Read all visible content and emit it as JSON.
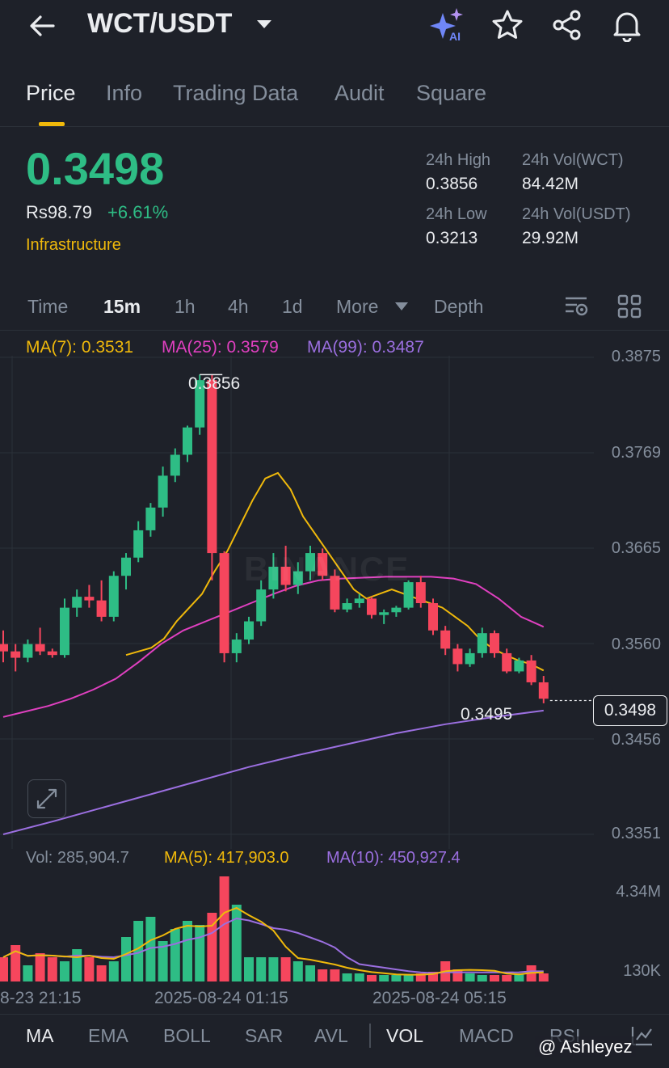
{
  "header": {
    "title": "WCT/USDT",
    "icons": [
      "back-arrow-icon",
      "chevron-down-icon",
      "ai-sparkle-icon",
      "star-icon",
      "share-icon",
      "bell-icon"
    ]
  },
  "tabs": [
    {
      "label": "Price"
    },
    {
      "label": "Info"
    },
    {
      "label": "Trading Data"
    },
    {
      "label": "Audit"
    },
    {
      "label": "Square"
    }
  ],
  "ticker": {
    "price": "0.3498",
    "fiat": "Rs98.79",
    "change": "+6.61%",
    "tag": "Infrastructure",
    "high_label": "24h High",
    "high": "0.3856",
    "low_label": "24h Low",
    "low": "0.3213",
    "vol_base_label": "24h Vol(WCT)",
    "vol_base": "84.42M",
    "vol_quote_label": "24h Vol(USDT)",
    "vol_quote": "29.92M"
  },
  "timeframes": {
    "items": [
      "Time",
      "15m",
      "1h",
      "4h",
      "1d",
      "More",
      "Depth"
    ],
    "selected": "15m"
  },
  "ma_legend": {
    "ma7": "MA(7): 0.3531",
    "ma25": "MA(25): 0.3579",
    "ma99": "MA(99): 0.3487"
  },
  "colors": {
    "up": "#2ebd85",
    "down": "#f6465d",
    "ma7": "#f0b90b",
    "ma25": "#e040c0",
    "ma99": "#9b6fe0",
    "bg": "#1e2129"
  },
  "chart_data": {
    "type": "candlestick",
    "price_axis": [
      "0.3875",
      "0.3769",
      "0.3665",
      "0.3560",
      "0.3456",
      "0.3351"
    ],
    "y_range": [
      0.3351,
      0.3875
    ],
    "high_marker": "0.3856",
    "low_marker": "0.3495",
    "last_price": "0.3498",
    "watermark": "BINANCE",
    "time_axis": [
      "8-23 21:15",
      "2025-08-24 01:15",
      "2025-08-24 05:15"
    ],
    "candles": [
      [
        0.356,
        0.3575,
        0.354,
        0.3552
      ],
      [
        0.3552,
        0.356,
        0.353,
        0.3545
      ],
      [
        0.3545,
        0.3565,
        0.354,
        0.356
      ],
      [
        0.356,
        0.3578,
        0.3548,
        0.3552
      ],
      [
        0.3552,
        0.3555,
        0.3545,
        0.3548
      ],
      [
        0.3548,
        0.361,
        0.3545,
        0.36
      ],
      [
        0.36,
        0.362,
        0.359,
        0.3612
      ],
      [
        0.3612,
        0.3625,
        0.36,
        0.3608
      ],
      [
        0.3608,
        0.363,
        0.3585,
        0.359
      ],
      [
        0.359,
        0.364,
        0.3585,
        0.3635
      ],
      [
        0.3635,
        0.366,
        0.362,
        0.3655
      ],
      [
        0.3655,
        0.3695,
        0.365,
        0.3685
      ],
      [
        0.3685,
        0.3715,
        0.3678,
        0.371
      ],
      [
        0.371,
        0.3755,
        0.37,
        0.3745
      ],
      [
        0.3745,
        0.3775,
        0.3738,
        0.3768
      ],
      [
        0.3768,
        0.38,
        0.376,
        0.3798
      ],
      [
        0.3798,
        0.3856,
        0.379,
        0.385
      ],
      [
        0.385,
        0.3856,
        0.363,
        0.366
      ],
      [
        0.366,
        0.3662,
        0.354,
        0.355
      ],
      [
        0.355,
        0.3572,
        0.354,
        0.3565
      ],
      [
        0.3565,
        0.359,
        0.356,
        0.3585
      ],
      [
        0.3585,
        0.363,
        0.358,
        0.362
      ],
      [
        0.362,
        0.366,
        0.361,
        0.3645
      ],
      [
        0.3645,
        0.3668,
        0.3618,
        0.3625
      ],
      [
        0.3625,
        0.365,
        0.3615,
        0.364
      ],
      [
        0.364,
        0.3668,
        0.363,
        0.366
      ],
      [
        0.366,
        0.3665,
        0.363,
        0.3635
      ],
      [
        0.3635,
        0.3642,
        0.3595,
        0.3598
      ],
      [
        0.3598,
        0.361,
        0.3595,
        0.3605
      ],
      [
        0.3605,
        0.3615,
        0.36,
        0.361
      ],
      [
        0.361,
        0.3612,
        0.3588,
        0.3592
      ],
      [
        0.3592,
        0.3598,
        0.3582,
        0.3595
      ],
      [
        0.3595,
        0.3602,
        0.359,
        0.36
      ],
      [
        0.36,
        0.363,
        0.3598,
        0.3628
      ],
      [
        0.3628,
        0.3635,
        0.36,
        0.3605
      ],
      [
        0.3605,
        0.361,
        0.357,
        0.3575
      ],
      [
        0.3575,
        0.358,
        0.3548,
        0.3555
      ],
      [
        0.3555,
        0.356,
        0.353,
        0.3538
      ],
      [
        0.3538,
        0.3555,
        0.3535,
        0.355
      ],
      [
        0.355,
        0.3578,
        0.3545,
        0.3572
      ],
      [
        0.3572,
        0.3575,
        0.3545,
        0.355
      ],
      [
        0.355,
        0.3555,
        0.3528,
        0.353
      ],
      [
        0.353,
        0.3545,
        0.3528,
        0.3542
      ],
      [
        0.3542,
        0.3548,
        0.3515,
        0.3518
      ],
      [
        0.3518,
        0.3525,
        0.3495,
        0.35
      ]
    ],
    "ma7": [
      0.3548,
      0.3552,
      0.3556,
      0.3566,
      0.3585,
      0.36,
      0.3615,
      0.364,
      0.3662,
      0.369,
      0.3718,
      0.3742,
      0.3748,
      0.373,
      0.37,
      0.368,
      0.366,
      0.364,
      0.362,
      0.361,
      0.3615,
      0.362,
      0.3615,
      0.361,
      0.3605,
      0.36,
      0.359,
      0.358,
      0.3565,
      0.3555,
      0.3548,
      0.3542,
      0.3538,
      0.3531
    ],
    "ma25": [
      0.348,
      0.3486,
      0.3492,
      0.35,
      0.351,
      0.3522,
      0.354,
      0.356,
      0.3575,
      0.3585,
      0.3595,
      0.3605,
      0.3615,
      0.3624,
      0.363,
      0.3632,
      0.3633,
      0.3634,
      0.3634,
      0.3634,
      0.3632,
      0.3626,
      0.361,
      0.359,
      0.3579
    ],
    "ma99": [
      0.3351,
      0.3365,
      0.338,
      0.3395,
      0.341,
      0.3425,
      0.3438,
      0.345,
      0.3462,
      0.3472,
      0.348,
      0.3487
    ],
    "volume": {
      "label": "Vol: 285,904.7",
      "ma5": "MA(5): 417,903.0",
      "ma10": "MA(10): 450,927.4",
      "axis": [
        "4.34M",
        "130K"
      ]
    }
  },
  "bottom_tabs": {
    "items": [
      "MA",
      "EMA",
      "BOLL",
      "SAR",
      "AVL",
      "VOL",
      "MACD",
      "RSI"
    ],
    "active": [
      "MA",
      "VOL"
    ]
  },
  "watermark_user": "@ Ashleyez"
}
